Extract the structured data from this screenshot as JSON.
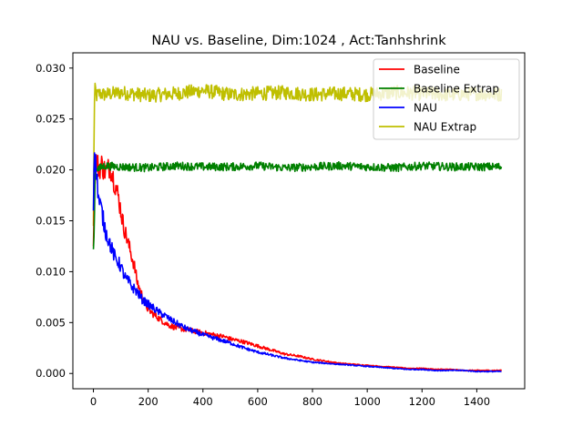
{
  "chart_data": {
    "type": "line",
    "title": "NAU vs. Baseline, Dim:1024 , Act:Tanhshrink",
    "xlabel": "",
    "ylabel": "",
    "xlim": [
      -75,
      1575
    ],
    "ylim": [
      -0.0015,
      0.0315
    ],
    "xticks": [
      0,
      200,
      400,
      600,
      800,
      1000,
      1200,
      1400
    ],
    "xtick_labels": [
      "0",
      "200",
      "400",
      "600",
      "800",
      "1000",
      "1200",
      "1400"
    ],
    "yticks": [
      0.0,
      0.005,
      0.01,
      0.015,
      0.02,
      0.025,
      0.03
    ],
    "ytick_labels": [
      "0.000",
      "0.005",
      "0.010",
      "0.015",
      "0.020",
      "0.025",
      "0.030"
    ],
    "grid": false,
    "legend_position": "top-right",
    "noise_note": "series are noisy; values below are sampled every 10 steps from 0 to 1490",
    "series": [
      {
        "name": "Baseline",
        "color": "#ff0000",
        "x": [
          0,
          5,
          10,
          20,
          30,
          40,
          50,
          60,
          70,
          80,
          90,
          100,
          110,
          120,
          130,
          140,
          150,
          160,
          170,
          180,
          190,
          200,
          220,
          240,
          260,
          280,
          300,
          320,
          340,
          360,
          380,
          400,
          420,
          440,
          460,
          480,
          500,
          550,
          600,
          650,
          700,
          750,
          800,
          850,
          900,
          950,
          1000,
          1050,
          1100,
          1150,
          1200,
          1250,
          1300,
          1350,
          1400,
          1450,
          1490
        ],
        "y": [
          0.0125,
          0.0195,
          0.0208,
          0.0202,
          0.0205,
          0.02,
          0.0198,
          0.0205,
          0.0195,
          0.0185,
          0.0175,
          0.016,
          0.0145,
          0.0135,
          0.0125,
          0.0115,
          0.0105,
          0.009,
          0.0082,
          0.0075,
          0.0068,
          0.0063,
          0.0058,
          0.0054,
          0.005,
          0.0047,
          0.0045,
          0.0044,
          0.0043,
          0.0042,
          0.0041,
          0.004,
          0.0039,
          0.0038,
          0.0037,
          0.0036,
          0.0034,
          0.0031,
          0.0027,
          0.0023,
          0.0019,
          0.0017,
          0.0014,
          0.0012,
          0.001,
          0.0009,
          0.0008,
          0.0007,
          0.0006,
          0.0005,
          0.0005,
          0.0004,
          0.0004,
          0.0003,
          0.0003,
          0.0003,
          0.0003
        ]
      },
      {
        "name": "Baseline Extrap",
        "color": "#008000",
        "mean": 0.0203,
        "noise": 0.0004,
        "x": [
          0,
          3,
          6,
          10,
          20,
          40,
          100,
          200,
          300,
          400,
          500,
          600,
          700,
          800,
          900,
          1000,
          1100,
          1200,
          1300,
          1400,
          1490
        ],
        "y": [
          0.0122,
          0.014,
          0.0195,
          0.0203,
          0.0201,
          0.0204,
          0.0203,
          0.0202,
          0.0204,
          0.0203,
          0.0203,
          0.0204,
          0.0202,
          0.0203,
          0.0204,
          0.0203,
          0.0202,
          0.0204,
          0.0203,
          0.0203,
          0.0203
        ]
      },
      {
        "name": "NAU",
        "color": "#0000ff",
        "x": [
          0,
          3,
          6,
          10,
          15,
          20,
          30,
          40,
          50,
          60,
          70,
          80,
          90,
          100,
          110,
          120,
          130,
          140,
          150,
          160,
          170,
          180,
          190,
          200,
          220,
          240,
          260,
          280,
          300,
          320,
          340,
          360,
          380,
          400,
          450,
          500,
          550,
          600,
          650,
          700,
          750,
          800,
          850,
          900,
          950,
          1000,
          1050,
          1100,
          1150,
          1200,
          1250,
          1300,
          1350,
          1400,
          1450,
          1490
        ],
        "y": [
          0.016,
          0.022,
          0.021,
          0.02,
          0.0185,
          0.017,
          0.016,
          0.0145,
          0.0135,
          0.0128,
          0.012,
          0.0113,
          0.011,
          0.0105,
          0.0098,
          0.0092,
          0.009,
          0.0085,
          0.0083,
          0.008,
          0.0076,
          0.0072,
          0.007,
          0.0068,
          0.0064,
          0.006,
          0.0057,
          0.0053,
          0.005,
          0.0047,
          0.0044,
          0.0042,
          0.004,
          0.0038,
          0.0034,
          0.003,
          0.0025,
          0.0021,
          0.0018,
          0.0015,
          0.0013,
          0.0011,
          0.001,
          0.0009,
          0.0008,
          0.0007,
          0.0006,
          0.0005,
          0.0004,
          0.0004,
          0.0003,
          0.0003,
          0.0003,
          0.0002,
          0.0002,
          0.0002
        ]
      },
      {
        "name": "NAU Extrap",
        "color": "#bfbf00",
        "mean": 0.0274,
        "noise": 0.0007,
        "x": [
          0,
          3,
          6,
          10,
          20,
          40,
          100,
          200,
          300,
          400,
          500,
          600,
          700,
          800,
          900,
          1000,
          1100,
          1200,
          1300,
          1400,
          1490
        ],
        "y": [
          0.0145,
          0.026,
          0.0285,
          0.0272,
          0.0275,
          0.0274,
          0.0276,
          0.0273,
          0.0275,
          0.0278,
          0.0274,
          0.0275,
          0.0276,
          0.0274,
          0.0275,
          0.0274,
          0.0276,
          0.0275,
          0.0274,
          0.0275,
          0.0274
        ]
      }
    ]
  }
}
